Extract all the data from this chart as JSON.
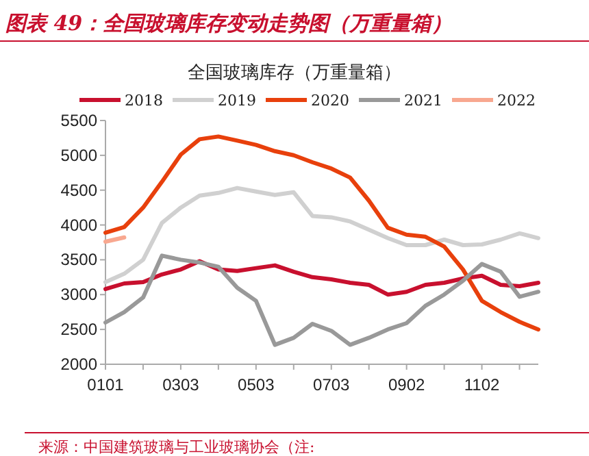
{
  "chart_data": {
    "type": "line",
    "title": "图表 49：全国玻璃库存变动走势图（万重量箱）",
    "subtitle": "全国玻璃库存（万重量箱）",
    "annotations": [
      "来源：中国建筑玻璃与工业玻璃协会（注:"
    ],
    "categories": [
      "0101",
      null,
      null,
      null,
      "0303",
      null,
      null,
      null,
      "0503",
      null,
      null,
      null,
      "0703",
      null,
      null,
      null,
      "0902",
      null,
      null,
      null,
      "1102",
      null,
      null,
      null
    ],
    "series": [
      {
        "name": "2018",
        "color": "#c8102e",
        "values": [
          3080,
          3160,
          3180,
          3290,
          3360,
          3480,
          3360,
          3340,
          3380,
          3420,
          3330,
          3250,
          3220,
          3170,
          3140,
          3000,
          3040,
          3140,
          3170,
          3230,
          3270,
          3140,
          3120,
          3170
        ]
      },
      {
        "name": "2019",
        "color": "#d0d0d0",
        "values": [
          3180,
          3300,
          3500,
          4030,
          4250,
          4420,
          4460,
          4530,
          4480,
          4430,
          4470,
          4130,
          4110,
          4050,
          3930,
          3810,
          3710,
          3710,
          3790,
          3710,
          3720,
          3790,
          3880,
          3810
        ]
      },
      {
        "name": "2020",
        "color": "#e8400c",
        "values": [
          3890,
          3970,
          4250,
          4620,
          5010,
          5230,
          5270,
          5210,
          5150,
          5060,
          5000,
          4900,
          4810,
          4680,
          4350,
          3960,
          3860,
          3830,
          3690,
          3360,
          2910,
          2750,
          2610,
          2500
        ]
      },
      {
        "name": "2021",
        "color": "#999999",
        "values": [
          2600,
          2750,
          2960,
          3560,
          3500,
          3460,
          3400,
          3100,
          2910,
          2280,
          2380,
          2580,
          2480,
          2280,
          2380,
          2500,
          2590,
          2840,
          3000,
          3200,
          3440,
          3330,
          2970,
          3040
        ]
      },
      {
        "name": "2022",
        "color": "#f8a890",
        "values": [
          3760,
          3820,
          null,
          null,
          null,
          null,
          null,
          null,
          null,
          null,
          null,
          null,
          null,
          null,
          null,
          null,
          null,
          null,
          null,
          null,
          null,
          null,
          null,
          null
        ]
      }
    ],
    "ylim": [
      2000,
      5500
    ],
    "yticks": [
      2000,
      2500,
      3000,
      3500,
      4000,
      4500,
      5000,
      5500
    ],
    "legend": "top"
  }
}
